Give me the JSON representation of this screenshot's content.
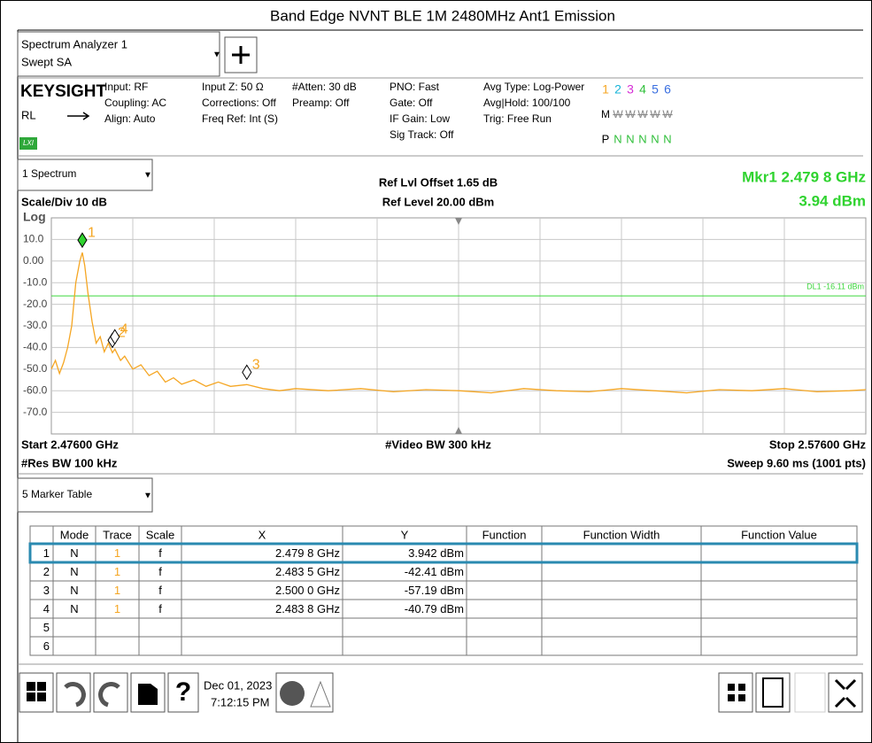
{
  "title": "Band Edge NVNT BLE 1M 2480MHz Ant1 Emission",
  "tab": {
    "name": "Spectrum Analyzer 1",
    "mode": "Swept SA"
  },
  "info": {
    "brand": "KEYSIGHT",
    "rl": "RL",
    "lxi": "LXI",
    "columns": [
      [
        "Input: RF",
        "Coupling: AC",
        "Align: Auto"
      ],
      [
        "Input Z: 50 Ω",
        "Corrections: Off",
        "Freq Ref: Int (S)"
      ],
      [
        "#Atten: 30 dB",
        "Preamp: Off"
      ],
      [
        "PNO: Fast",
        "Gate: Off",
        "IF Gain: Low",
        "Sig Track: Off"
      ],
      [
        "Avg Type: Log-Power",
        "Avg|Hold: 100/100",
        "Trig: Free Run"
      ]
    ],
    "traces": [
      "1",
      "2",
      "3",
      "4",
      "5",
      "6"
    ],
    "trace_colors": [
      "#f5a623",
      "#18b4d8",
      "#d62fd6",
      "#2fbf3a",
      "#3a6fe0",
      "#3a6fe0"
    ],
    "trace_modes": [
      "M",
      "W",
      "W",
      "W",
      "W",
      "W"
    ],
    "detectors": [
      "P",
      "N",
      "N",
      "N",
      "N",
      "N"
    ]
  },
  "window": "1 Spectrum",
  "ref_offset": "Ref Lvl Offset 1.65 dB",
  "ref_level": "Ref Level 20.00 dBm",
  "marker_readout": [
    "Mkr1  2.479 8 GHz",
    "3.94 dBm"
  ],
  "scale": "Scale/Div 10 dB",
  "scale_type": "Log",
  "chart_data": {
    "type": "line",
    "xlim": [
      2.476,
      2.576
    ],
    "xticks": [
      2.486,
      2.496,
      2.506,
      2.516,
      2.526,
      2.536,
      2.546,
      2.556,
      2.566
    ],
    "ylim": [
      -80,
      20
    ],
    "yticks": [
      {
        "value": 10,
        "label": "10.0"
      },
      {
        "value": 0,
        "label": "0.00"
      },
      {
        "value": -10,
        "label": "-10.0"
      },
      {
        "value": -20,
        "label": "-20.0"
      },
      {
        "value": -30,
        "label": "-30.0"
      },
      {
        "value": -40,
        "label": "-40.0"
      },
      {
        "value": -50,
        "label": "-50.0"
      },
      {
        "value": -60,
        "label": "-60.0"
      },
      {
        "value": -70,
        "label": "-70.0"
      }
    ],
    "grid": true,
    "trace": {
      "color": "#f5a623",
      "x": [
        2.476,
        2.4765,
        2.477,
        2.4775,
        2.478,
        2.4785,
        2.479,
        2.4795,
        2.4798,
        2.4801,
        2.4805,
        2.481,
        2.4815,
        2.482,
        2.4825,
        2.483,
        2.4835,
        2.4838,
        2.4845,
        2.485,
        2.486,
        2.487,
        2.488,
        2.489,
        2.49,
        2.491,
        2.492,
        2.4935,
        2.495,
        2.4965,
        2.498,
        2.5,
        2.502,
        2.504,
        2.506,
        2.51,
        2.514,
        2.518,
        2.522,
        2.526,
        2.53,
        2.534,
        2.538,
        2.542,
        2.546,
        2.55,
        2.554,
        2.558,
        2.562,
        2.566,
        2.57,
        2.574,
        2.576
      ],
      "values": [
        -50,
        -46,
        -52,
        -47,
        -40,
        -30,
        -10,
        0,
        3.94,
        -2,
        -15,
        -28,
        -38,
        -35,
        -42,
        -38,
        -42.41,
        -40.79,
        -46,
        -44,
        -50,
        -48,
        -53,
        -51,
        -56,
        -54,
        -57,
        -55,
        -58,
        -56,
        -58,
        -57.19,
        -59,
        -60,
        -59,
        -60,
        -59,
        -60.5,
        -59.5,
        -60,
        -61,
        -59,
        -60,
        -60.5,
        -59,
        -60,
        -61,
        -59.5,
        -60,
        -59,
        -60.5,
        -60,
        -59.5
      ]
    },
    "display_line": {
      "value": -16.11,
      "label": "DL1 -16.11 dBm",
      "color": "#3cd63c"
    },
    "markers": [
      {
        "label": "1",
        "x": 2.4798,
        "y": 3.94
      },
      {
        "label": "2",
        "x": 2.4835,
        "y": -42.41
      },
      {
        "label": "3",
        "x": 2.5,
        "y": -57.19
      },
      {
        "label": "4",
        "x": 2.4838,
        "y": -40.79
      }
    ]
  },
  "footer": {
    "start": "Start 2.47600 GHz",
    "video_bw": "#Video BW 300 kHz",
    "stop": "Stop 2.57600 GHz",
    "res_bw": "#Res BW 100 kHz",
    "sweep": "Sweep 9.60 ms (1001 pts)"
  },
  "table_window": "5 Marker Table",
  "marker_table": {
    "headers": [
      "Mode",
      "Trace",
      "Scale",
      "X",
      "Y",
      "Function",
      "Function Width",
      "Function Value"
    ],
    "rows": [
      [
        "1",
        "N",
        "1",
        "f",
        "2.479 8 GHz",
        "3.942 dBm"
      ],
      [
        "2",
        "N",
        "1",
        "f",
        "2.483 5 GHz",
        "-42.41 dBm"
      ],
      [
        "3",
        "N",
        "1",
        "f",
        "2.500 0 GHz",
        "-57.19 dBm"
      ],
      [
        "4",
        "N",
        "1",
        "f",
        "2.483 8 GHz",
        "-40.79 dBm"
      ],
      [
        "5"
      ],
      [
        "6"
      ]
    ]
  },
  "toolbar": {
    "date": "Dec 01, 2023",
    "time": "7:12:15 PM"
  }
}
